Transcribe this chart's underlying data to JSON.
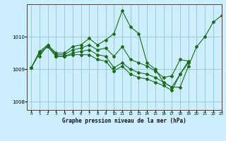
{
  "title": "Graphe pression niveau de la mer (hPa)",
  "background_color": "#cceeff",
  "line_color": "#1a6b1a",
  "grid_color": "#99cccc",
  "xlim": [
    -0.5,
    23
  ],
  "ylim": [
    1007.75,
    1011.0
  ],
  "yticks": [
    1008,
    1009,
    1010
  ],
  "xticks": [
    0,
    1,
    2,
    3,
    4,
    5,
    6,
    7,
    8,
    9,
    10,
    11,
    12,
    13,
    14,
    15,
    16,
    17,
    18,
    19,
    20,
    21,
    22,
    23
  ],
  "series": [
    [
      null,
      1009.4,
      1009.75,
      1009.5,
      1009.5,
      1009.7,
      1009.75,
      1009.95,
      1009.75,
      1009.9,
      1010.1,
      1010.8,
      1010.3,
      1010.1,
      1009.2,
      1009.0,
      1008.6,
      1008.45,
      1008.45,
      1009.1,
      1009.7,
      1010.0,
      1010.45,
      1010.65
    ],
    [
      1009.05,
      1009.55,
      1009.75,
      1009.45,
      1009.45,
      1009.6,
      1009.65,
      1009.75,
      1009.6,
      1009.65,
      1009.4,
      1009.7,
      1009.3,
      1009.2,
      1009.1,
      1008.95,
      1008.75,
      1008.8,
      1009.3,
      1009.25,
      null,
      null,
      null,
      null
    ],
    [
      1009.05,
      1009.5,
      1009.7,
      1009.4,
      1009.4,
      1009.5,
      1009.55,
      1009.6,
      1009.45,
      1009.4,
      1009.05,
      1009.2,
      1009.0,
      1008.9,
      1008.85,
      1008.75,
      1008.6,
      1008.45,
      1008.85,
      1009.25,
      null,
      null,
      null,
      null
    ],
    [
      1009.05,
      1009.5,
      1009.7,
      1009.4,
      1009.4,
      1009.45,
      1009.45,
      1009.45,
      1009.3,
      1009.25,
      1008.95,
      1009.1,
      1008.85,
      1008.75,
      1008.7,
      1008.6,
      1008.5,
      1008.35,
      1008.85,
      1009.2,
      null,
      null,
      null,
      null
    ]
  ]
}
